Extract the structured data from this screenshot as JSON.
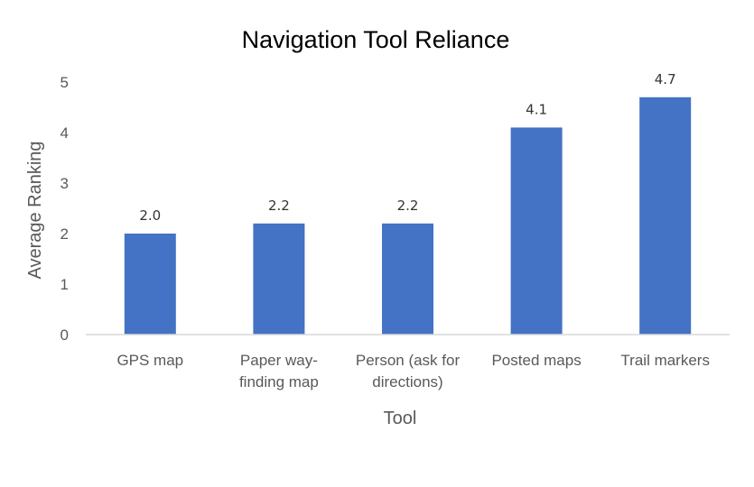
{
  "chart_data": {
    "type": "bar",
    "title": "Navigation Tool Reliance",
    "xlabel": "Tool",
    "ylabel": "Average Ranking",
    "categories": [
      [
        "GPS map"
      ],
      [
        "Paper way-",
        "finding map"
      ],
      [
        "Person (ask for",
        "directions)"
      ],
      [
        "Posted maps"
      ],
      [
        "Trail markers"
      ]
    ],
    "values": [
      2.0,
      2.2,
      2.2,
      4.1,
      4.7
    ],
    "data_labels": [
      "2.0",
      "2.2",
      "2.2",
      "4.1",
      "4.7"
    ],
    "ylim": [
      0,
      5
    ],
    "yticks": [
      "0",
      "1",
      "2",
      "3",
      "4",
      "5"
    ],
    "grid": false,
    "legend": "none",
    "colors": {
      "bar": "#4472C4",
      "axis_line": "#D9D9D9"
    }
  }
}
